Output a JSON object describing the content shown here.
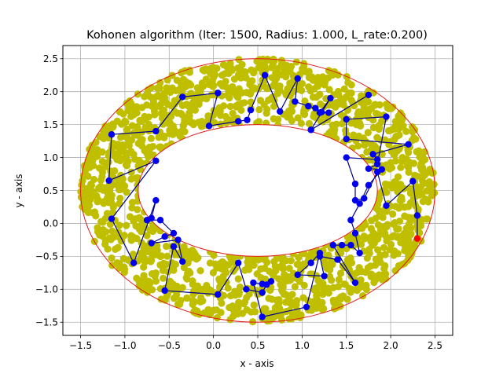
{
  "chart_data": {
    "type": "scatter",
    "title": "Kohonen algorithm (Iter: 1500, Radius: 1.000, L_rate:0.200)",
    "xlabel": "x - axis",
    "ylabel": "y - axis",
    "xlim": [
      -1.7,
      2.7
    ],
    "ylim": [
      -1.7,
      2.7
    ],
    "xticks": [
      -1.5,
      -1.0,
      -0.5,
      0.0,
      0.5,
      1.0,
      1.5,
      2.0,
      2.5
    ],
    "yticks": [
      -1.5,
      -1.0,
      -0.5,
      0.0,
      0.5,
      1.0,
      1.5,
      2.0,
      2.5
    ],
    "xtick_labels": [
      "−1.5",
      "−1.0",
      "−0.5",
      "0.0",
      "0.5",
      "1.0",
      "1.5",
      "2.0",
      "2.5"
    ],
    "ytick_labels": [
      "−1.5",
      "−1.0",
      "−0.5",
      "0.0",
      "0.5",
      "1.0",
      "1.5",
      "2.0",
      "2.5"
    ],
    "grid": true,
    "annulus": {
      "center": [
        0.5,
        0.5
      ],
      "outer_radii": [
        2.0,
        2.0
      ],
      "inner_radii": [
        1.35,
        1.0
      ],
      "color": "#e31a1c"
    },
    "sample_color": "#bfbf00",
    "neuron_color": "#0000ee",
    "path_color": "#00008b",
    "winner_color": "#ff0000",
    "neurons": [
      [
        2.3,
        -0.23
      ],
      [
        2.3,
        0.12
      ],
      [
        2.25,
        0.64
      ],
      [
        1.95,
        0.27
      ],
      [
        1.85,
        0.78
      ],
      [
        1.7,
        0.38
      ],
      [
        1.6,
        0.35
      ],
      [
        1.6,
        0.6
      ],
      [
        1.5,
        1.0
      ],
      [
        1.85,
        0.97
      ],
      [
        1.8,
        1.05
      ],
      [
        2.2,
        1.2
      ],
      [
        1.5,
        1.28
      ],
      [
        1.5,
        1.58
      ],
      [
        1.95,
        1.62
      ],
      [
        1.85,
        0.9
      ],
      [
        1.75,
        0.83
      ],
      [
        1.9,
        0.82
      ],
      [
        1.75,
        0.58
      ],
      [
        1.65,
        0.3
      ],
      [
        1.55,
        0.05
      ],
      [
        1.6,
        -0.15
      ],
      [
        1.65,
        -0.45
      ],
      [
        1.55,
        -0.33
      ],
      [
        1.45,
        -0.33
      ],
      [
        1.35,
        -0.33
      ],
      [
        1.6,
        -0.9
      ],
      [
        1.4,
        -0.55
      ],
      [
        1.2,
        -0.5
      ],
      [
        1.25,
        -0.8
      ],
      [
        0.95,
        -0.78
      ],
      [
        1.1,
        -0.6
      ],
      [
        1.2,
        -0.45
      ],
      [
        1.05,
        -1.27
      ],
      [
        0.55,
        -1.42
      ],
      [
        0.45,
        -0.9
      ],
      [
        0.55,
        -0.92
      ],
      [
        0.65,
        -0.88
      ],
      [
        0.6,
        -0.93
      ],
      [
        0.55,
        -1.05
      ],
      [
        0.37,
        -1.0
      ],
      [
        0.28,
        -0.6
      ],
      [
        0.05,
        -1.08
      ],
      [
        -0.55,
        -1.02
      ],
      [
        -0.45,
        -0.35
      ],
      [
        -0.35,
        -0.58
      ],
      [
        -0.4,
        -0.25
      ],
      [
        -0.7,
        -0.3
      ],
      [
        -0.55,
        -0.2
      ],
      [
        -0.45,
        -0.15
      ],
      [
        -0.6,
        0.05
      ],
      [
        -0.75,
        0.05
      ],
      [
        -0.7,
        0.08
      ],
      [
        -0.65,
        0.35
      ],
      [
        -0.9,
        -0.6
      ],
      [
        -1.15,
        0.07
      ],
      [
        -0.65,
        0.95
      ],
      [
        -1.18,
        0.65
      ],
      [
        -1.15,
        1.35
      ],
      [
        -0.65,
        1.4
      ],
      [
        -0.35,
        1.92
      ],
      [
        0.05,
        1.98
      ],
      [
        -0.05,
        1.48
      ],
      [
        0.28,
        1.55
      ],
      [
        0.38,
        1.57
      ],
      [
        0.42,
        1.72
      ],
      [
        0.58,
        2.25
      ],
      [
        0.75,
        1.7
      ],
      [
        0.95,
        2.2
      ],
      [
        0.92,
        1.85
      ],
      [
        1.07,
        1.78
      ],
      [
        1.15,
        1.75
      ],
      [
        1.22,
        1.69
      ],
      [
        1.3,
        1.68
      ],
      [
        1.2,
        1.68
      ],
      [
        1.32,
        1.9
      ],
      [
        1.1,
        1.42
      ],
      [
        1.75,
        1.95
      ]
    ]
  }
}
